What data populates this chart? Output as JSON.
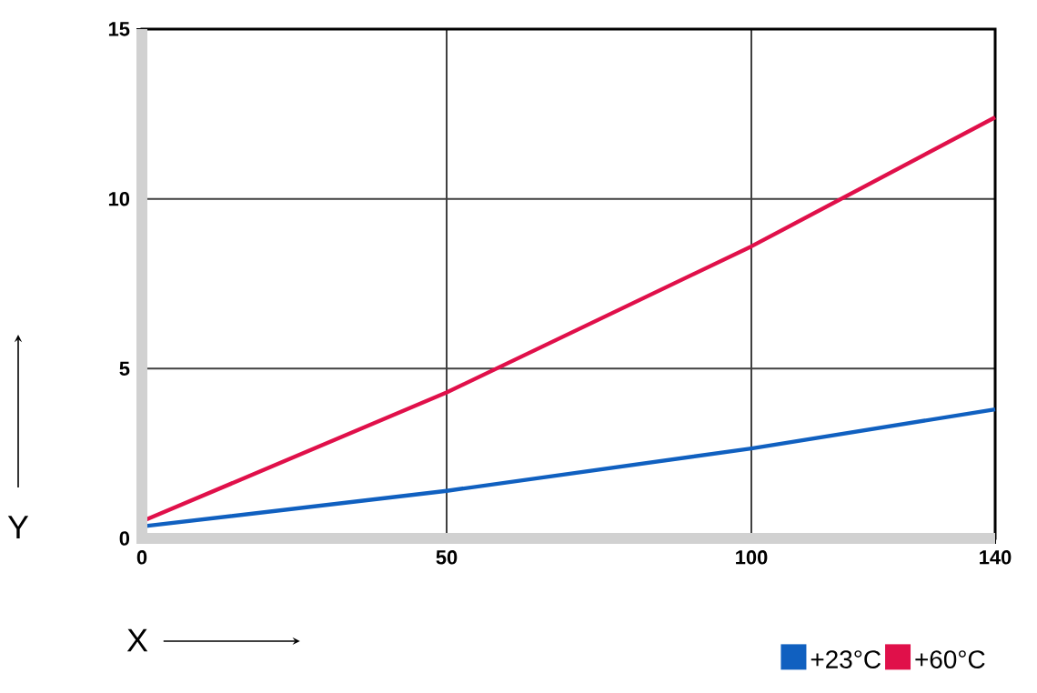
{
  "chart_data": {
    "type": "line",
    "xlabel": "X",
    "ylabel": "Y",
    "x": [
      0,
      50,
      100,
      140
    ],
    "series": [
      {
        "name": "+23°C",
        "color": "#1060c0",
        "values": [
          0.35,
          1.4,
          2.65,
          3.8
        ]
      },
      {
        "name": "+60°C",
        "color": "#e0104a",
        "values": [
          0.5,
          4.3,
          8.6,
          12.4
        ]
      }
    ],
    "xlim": [
      0,
      140
    ],
    "ylim": [
      0,
      15
    ],
    "xticks": [
      0,
      50,
      100,
      140
    ],
    "yticks": [
      0,
      5,
      10,
      15
    ],
    "grid": true,
    "legend": "bottom right",
    "marker": "none",
    "line_style": "solid"
  }
}
